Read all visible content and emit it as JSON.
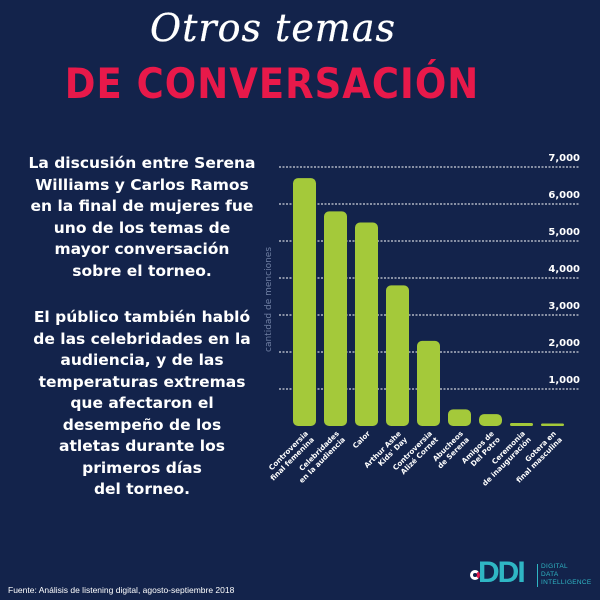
{
  "header": {
    "script_title": "Otros temas",
    "main_title": "DE CONVERSACIÓN"
  },
  "body_text": {
    "paragraph_1": [
      "La discusión entre Serena",
      "Williams y Carlos Ramos",
      "en la final de mujeres fue",
      "uno de los temas de",
      "mayor conversación",
      "sobre el torneo."
    ],
    "paragraph_2": [
      "El público también habló",
      "de las celebridades en la",
      "audiencia, y de las",
      "temperaturas extremas",
      "que afectaron el",
      "desempeño de los",
      "atletas durante los",
      "primeros días",
      "del torneo."
    ]
  },
  "footer": {
    "source": "Fuente: Análisis de listening digital, agosto-septiembre 2018",
    "logo_text": "DDI",
    "logo_words": [
      "DIGITAL",
      "DATA",
      "INTELLIGENCE"
    ]
  },
  "colors": {
    "background": "#13234b",
    "bar": "#a4c93a",
    "title_accent": "#e8194a",
    "logo": "#2fb6c4"
  },
  "chart_data": {
    "type": "bar",
    "title": "",
    "xlabel": "",
    "ylabel": "cantidad de menciones",
    "ylim": [
      0,
      7000
    ],
    "yticks": [
      1000,
      2000,
      3000,
      4000,
      5000,
      6000,
      7000
    ],
    "ytick_labels": [
      "1,000",
      "2,000",
      "3,000",
      "4,000",
      "5,000",
      "6,000",
      "7,000"
    ],
    "grid": true,
    "categories": [
      [
        "Controversia",
        "final femenina"
      ],
      [
        "Celebridades",
        "en la audiencia"
      ],
      [
        "Calor"
      ],
      [
        "Arthur Ashe",
        "Kids' Day"
      ],
      [
        "Controversia",
        "Alizé Cornet"
      ],
      [
        "Abucheos",
        "de Serena"
      ],
      [
        "Amigos de",
        "Del Potro"
      ],
      [
        "Ceremonia",
        "de inauguración"
      ],
      [
        "Gotera en",
        "final masculina"
      ]
    ],
    "values": [
      6700,
      5800,
      5500,
      3800,
      2300,
      450,
      320,
      80,
      50
    ]
  }
}
